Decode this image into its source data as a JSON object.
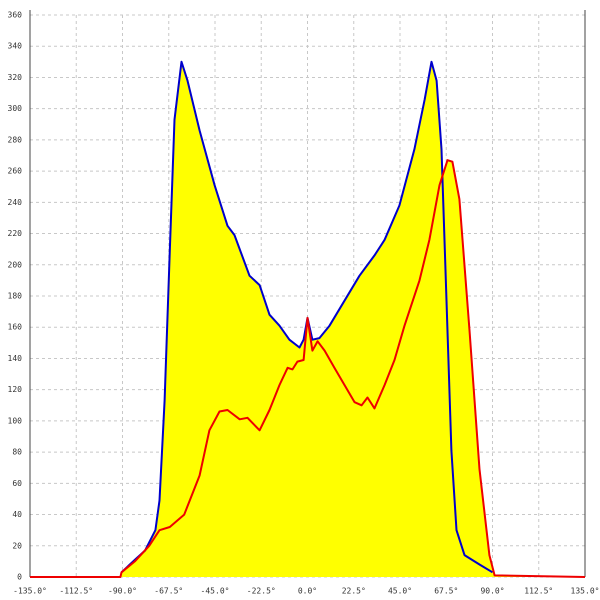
{
  "chart_data": {
    "type": "area-line",
    "fill": "#ffff00",
    "grid": true,
    "xlim": [
      -135,
      135
    ],
    "ylim": [
      0,
      360
    ],
    "xticks": [
      {
        "value": -135,
        "label": "-135.0°"
      },
      {
        "value": -112.5,
        "label": "-112.5°"
      },
      {
        "value": -90,
        "label": "-90.0°"
      },
      {
        "value": -67.5,
        "label": "-67.5°"
      },
      {
        "value": -45,
        "label": "-45.0°"
      },
      {
        "value": -22.5,
        "label": "-22.5°"
      },
      {
        "value": 0,
        "label": "0.0°"
      },
      {
        "value": 22.5,
        "label": "22.5°"
      },
      {
        "value": 45,
        "label": "45.0°"
      },
      {
        "value": 67.5,
        "label": "67.5°"
      },
      {
        "value": 90,
        "label": "90.0°"
      },
      {
        "value": 112.5,
        "label": "112.5°"
      },
      {
        "value": 135,
        "label": "135.0°"
      }
    ],
    "yticks": [
      0,
      20,
      40,
      60,
      80,
      100,
      120,
      140,
      160,
      180,
      200,
      220,
      240,
      260,
      280,
      300,
      320,
      340,
      360
    ],
    "series": [
      {
        "color": "#0000cc",
        "x": [
          -90.5,
          -84,
          -79,
          -74,
          -72,
          -69.5,
          -67,
          -64.7,
          -61.3,
          -58.4,
          -52.5,
          -45.2,
          -38.9,
          -35.5,
          -28.2,
          -23.3,
          -18.5,
          -13.6,
          -8.8,
          -3.9,
          -1.9,
          0,
          2.4,
          5.8,
          10.7,
          18,
          25.3,
          32.6,
          37.5,
          44.7,
          52,
          57,
          60.3,
          62.8,
          65.2,
          67.6,
          70,
          72.5,
          76.4,
          83.7,
          90
        ],
        "values": [
          3,
          11,
          17,
          30,
          49,
          113,
          209,
          293,
          330,
          318,
          286,
          251,
          225,
          219,
          193,
          187,
          168,
          161,
          152,
          147,
          152,
          166,
          152,
          153,
          161,
          177,
          193,
          206,
          216,
          238,
          274,
          306,
          330,
          318,
          274,
          177,
          81,
          30,
          14,
          8,
          3
        ]
      },
      {
        "color": "#ee0000",
        "x": [
          -135,
          -91,
          -90.5,
          -84,
          -77,
          -72,
          -67,
          -60,
          -52.5,
          -47.7,
          -42.8,
          -38.9,
          -33,
          -29.2,
          -23.3,
          -18.5,
          -13.6,
          -9.7,
          -7.3,
          -4.9,
          -1.9,
          0,
          2.4,
          4.9,
          8.3,
          13.1,
          18,
          22.9,
          26.3,
          29.2,
          32.6,
          37.5,
          42.3,
          47.2,
          54.5,
          59.3,
          64.2,
          68.1,
          70.5,
          73.9,
          78.8,
          83.7,
          88.5,
          91,
          135
        ],
        "values": [
          0,
          0,
          3,
          10,
          20,
          30,
          32,
          40,
          65,
          94,
          106,
          107,
          101,
          102,
          94,
          107,
          123,
          134,
          133,
          138,
          139,
          166,
          145,
          151,
          145,
          134,
          123,
          112,
          110,
          115,
          108,
          123,
          139,
          161,
          190,
          216,
          251,
          267,
          266,
          242,
          158,
          69,
          14,
          1,
          0
        ]
      }
    ]
  }
}
